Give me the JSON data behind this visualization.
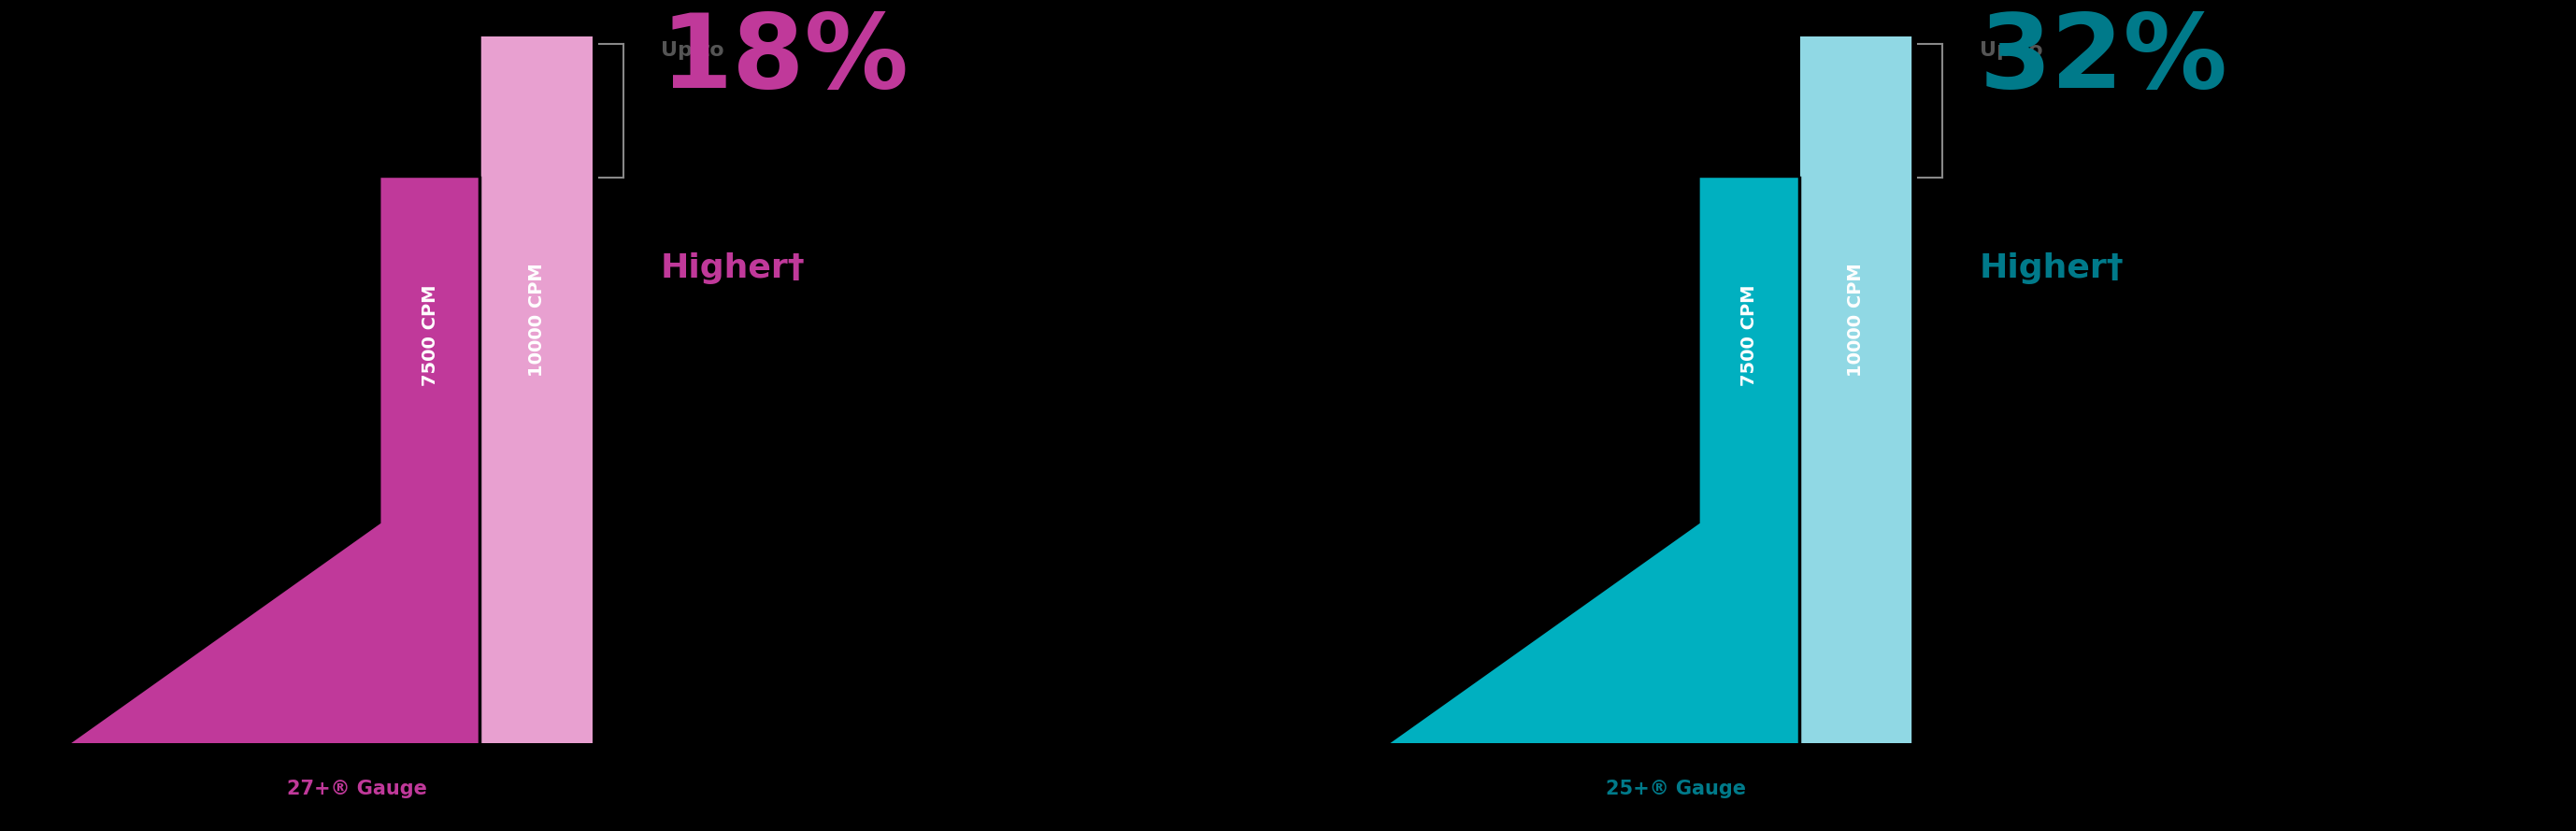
{
  "background_color": "#000000",
  "chart1": {
    "bar1_label": "7500 CPM",
    "bar2_label": "10000 CPM",
    "bar1_color": "#c0399a",
    "bar2_color": "#e8a0d0",
    "pct_text": "18%",
    "pct_color": "#c0399a",
    "higher_text": "Higher†",
    "higher_color": "#c0399a",
    "upto_text": "Up to",
    "upto_color": "#555555",
    "gauge_label": "27+® Gauge",
    "gauge_color": "#c0399a"
  },
  "chart2": {
    "bar1_label": "7500 CPM",
    "bar2_label": "10000 CPM",
    "bar1_color": "#00b0c0",
    "bar2_color": "#90d8e4",
    "pct_text": "32%",
    "pct_color": "#007a8a",
    "higher_text": "Higher†",
    "higher_color": "#007a8a",
    "upto_text": "Up to",
    "upto_color": "#555555",
    "gauge_label": "25+® Gauge",
    "gauge_color": "#007a8a"
  }
}
